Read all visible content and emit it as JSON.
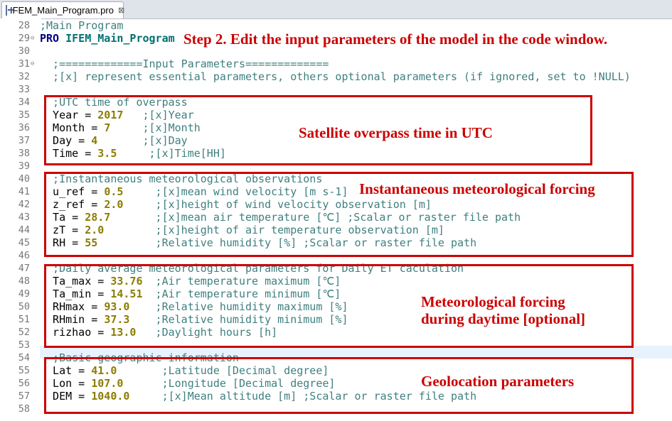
{
  "tab": {
    "title": "IFEM_Main_Program.pro",
    "icon": "idl-file-icon",
    "close": "⊠"
  },
  "lines": [
    {
      "n": "28",
      "parts": [
        {
          "c": "cmt",
          "t": ";Main Program"
        }
      ]
    },
    {
      "n": "29",
      "fold": "⊖",
      "parts": [
        {
          "c": "kw",
          "t": "PRO "
        },
        {
          "c": "kw2",
          "t": "IFEM_Main_Program"
        }
      ]
    },
    {
      "n": "30",
      "parts": []
    },
    {
      "n": "31",
      "fold": "⊖",
      "parts": [
        {
          "c": "cmt",
          "t": "  ;=============Input Parameters============="
        }
      ]
    },
    {
      "n": "32",
      "parts": [
        {
          "c": "cmt",
          "t": "  ;[x] represent essential parameters, others optional parameters (if ignored, set to !NULL)"
        }
      ]
    },
    {
      "n": "33",
      "parts": []
    },
    {
      "n": "34",
      "parts": [
        {
          "c": "cmt",
          "t": "  ;UTC time of overpass"
        }
      ]
    },
    {
      "n": "35",
      "parts": [
        {
          "c": "var",
          "t": "  Year = "
        },
        {
          "c": "num",
          "t": "2017"
        },
        {
          "c": "cmt",
          "t": "   ;[x]Year"
        }
      ]
    },
    {
      "n": "36",
      "parts": [
        {
          "c": "var",
          "t": "  Month = "
        },
        {
          "c": "num",
          "t": "7"
        },
        {
          "c": "cmt",
          "t": "     ;[x]Month"
        }
      ]
    },
    {
      "n": "37",
      "parts": [
        {
          "c": "var",
          "t": "  Day = "
        },
        {
          "c": "num",
          "t": "4"
        },
        {
          "c": "cmt",
          "t": "       ;[x]Day"
        }
      ]
    },
    {
      "n": "38",
      "parts": [
        {
          "c": "var",
          "t": "  Time = "
        },
        {
          "c": "num",
          "t": "3.5"
        },
        {
          "c": "cmt",
          "t": "     ;[x]Time[HH]"
        }
      ]
    },
    {
      "n": "39",
      "parts": []
    },
    {
      "n": "40",
      "parts": [
        {
          "c": "cmt",
          "t": "  ;Instantaneous meteorological observations"
        }
      ]
    },
    {
      "n": "41",
      "parts": [
        {
          "c": "var",
          "t": "  u_ref = "
        },
        {
          "c": "num",
          "t": "0.5"
        },
        {
          "c": "cmt",
          "t": "     ;[x]mean wind velocity [m s-1]"
        }
      ]
    },
    {
      "n": "42",
      "parts": [
        {
          "c": "var",
          "t": "  z_ref = "
        },
        {
          "c": "num",
          "t": "2.0"
        },
        {
          "c": "cmt",
          "t": "     ;[x]height of wind velocity observation [m]"
        }
      ]
    },
    {
      "n": "43",
      "parts": [
        {
          "c": "var",
          "t": "  Ta = "
        },
        {
          "c": "num",
          "t": "28.7"
        },
        {
          "c": "cmt",
          "t": "       ;[x]mean air temperature [℃] ;Scalar or raster file path"
        }
      ]
    },
    {
      "n": "44",
      "parts": [
        {
          "c": "var",
          "t": "  zT = "
        },
        {
          "c": "num",
          "t": "2.0"
        },
        {
          "c": "cmt",
          "t": "        ;[x]height of air temperature observation [m]"
        }
      ]
    },
    {
      "n": "45",
      "parts": [
        {
          "c": "var",
          "t": "  RH = "
        },
        {
          "c": "num",
          "t": "55"
        },
        {
          "c": "cmt",
          "t": "         ;Relative humidity [%] ;Scalar or raster file path"
        }
      ]
    },
    {
      "n": "46",
      "parts": []
    },
    {
      "n": "47",
      "parts": [
        {
          "c": "cmt",
          "t": "  ;Daily average meteorological parameters for Daily ET caculation"
        }
      ]
    },
    {
      "n": "48",
      "parts": [
        {
          "c": "var",
          "t": "  Ta_max = "
        },
        {
          "c": "num",
          "t": "33.76"
        },
        {
          "c": "cmt",
          "t": "  ;Air temperature maximum [℃]"
        }
      ]
    },
    {
      "n": "49",
      "parts": [
        {
          "c": "var",
          "t": "  Ta_min = "
        },
        {
          "c": "num",
          "t": "14.51"
        },
        {
          "c": "cmt",
          "t": "  ;Air temperature minimum [℃]"
        }
      ]
    },
    {
      "n": "50",
      "parts": [
        {
          "c": "var",
          "t": "  RHmax = "
        },
        {
          "c": "num",
          "t": "93.0"
        },
        {
          "c": "cmt",
          "t": "    ;Relative humidity maximum [%]"
        }
      ]
    },
    {
      "n": "51",
      "parts": [
        {
          "c": "var",
          "t": "  RHmin = "
        },
        {
          "c": "num",
          "t": "37.3"
        },
        {
          "c": "cmt",
          "t": "    ;Relative humidity minimum [%]"
        }
      ]
    },
    {
      "n": "52",
      "parts": [
        {
          "c": "var",
          "t": "  rizhao = "
        },
        {
          "c": "num",
          "t": "13.0"
        },
        {
          "c": "cmt",
          "t": "   ;Daylight hours [h]"
        }
      ]
    },
    {
      "n": "53",
      "parts": []
    },
    {
      "n": "54",
      "parts": [
        {
          "c": "cmt",
          "t": "  ;Basic geographic information"
        }
      ]
    },
    {
      "n": "55",
      "parts": [
        {
          "c": "var",
          "t": "  Lat = "
        },
        {
          "c": "num",
          "t": "41.0"
        },
        {
          "c": "cmt",
          "t": "       ;Latitude [Decimal degree]"
        }
      ]
    },
    {
      "n": "56",
      "parts": [
        {
          "c": "var",
          "t": "  Lon = "
        },
        {
          "c": "num",
          "t": "107.0"
        },
        {
          "c": "cmt",
          "t": "      ;Longitude [Decimal degree]"
        }
      ]
    },
    {
      "n": "57",
      "parts": [
        {
          "c": "var",
          "t": "  DEM = "
        },
        {
          "c": "num",
          "t": "1040.0"
        },
        {
          "c": "cmt",
          "t": "     ;[x]Mean altitude [m] ;Scalar or raster file path"
        }
      ]
    },
    {
      "n": "58",
      "parts": []
    }
  ],
  "annotations": {
    "step": "Step 2. Edit the input parameters of the model in the code window.",
    "overpass": "Satellite overpass time in UTC",
    "instant": "Instantaneous meteorological forcing",
    "daytime_1": "Meteorological forcing",
    "daytime_2": "during daytime [optional]",
    "geo": "Geolocation parameters"
  },
  "colors": {
    "highlight": "#cc0000",
    "comment": "#3f7f7f",
    "number": "#8b7d00",
    "keyword": "#000080"
  }
}
